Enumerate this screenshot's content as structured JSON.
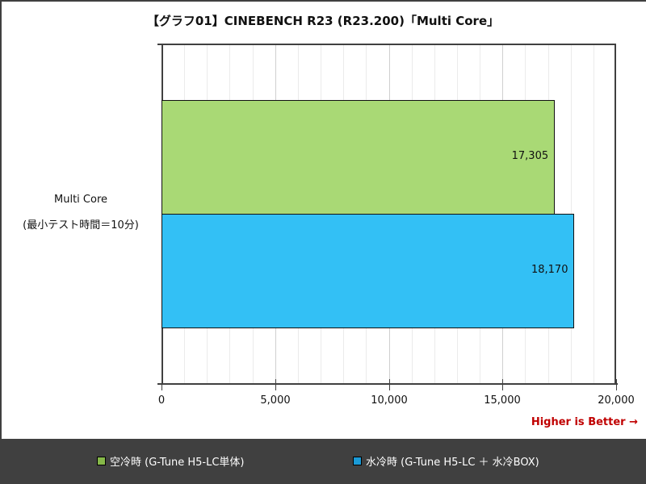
{
  "chart_data": {
    "type": "bar",
    "orientation": "horizontal",
    "title": "【グラフ01】CINEBENCH R23 (R23.200)「Multi Core」",
    "categories": [
      "Multi Core\n(最小テスト時間＝10分)"
    ],
    "category_lines": [
      "Multi Core",
      "(最小テスト時間＝10分)"
    ],
    "series": [
      {
        "name": "空冷時 (G-Tune H5-LC単体)",
        "values": [
          17305
        ],
        "label": "17,305",
        "color": "#a9d975"
      },
      {
        "name": "水冷時 (G-Tune H5-LC ＋ 水冷BOX)",
        "values": [
          18170
        ],
        "label": "18,170",
        "color": "#33c0f5"
      }
    ],
    "xlim": [
      0,
      20000
    ],
    "xticks": [
      0,
      5000,
      10000,
      15000,
      20000
    ],
    "xtick_labels": [
      "0",
      "5,000",
      "10,000",
      "15,000",
      "20,000"
    ],
    "minor_grid_step": 1000,
    "grid": true,
    "legend_position": "bottom",
    "annotation": "Higher is Better →",
    "xlabel": "",
    "ylabel": ""
  },
  "legend": {
    "swatch_colors": [
      "#86b849",
      "#1a9ad6"
    ]
  },
  "colors": {
    "annotation": "#c00000",
    "legend_bg": "#404040"
  }
}
